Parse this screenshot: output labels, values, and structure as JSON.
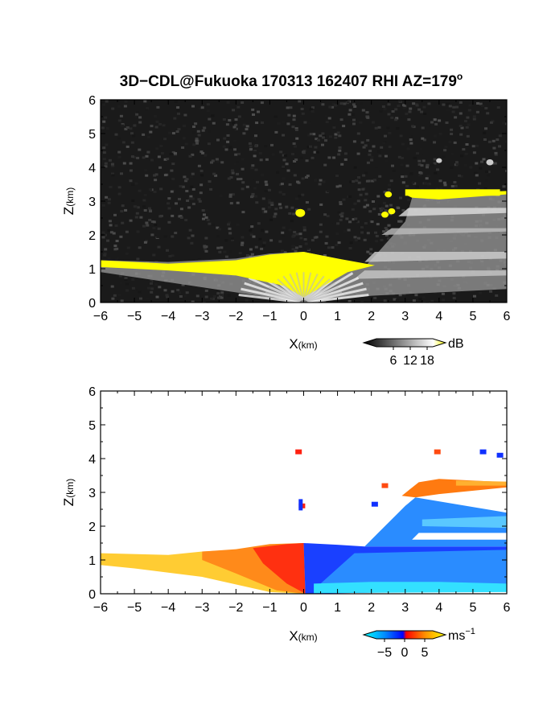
{
  "chart_data": [
    {
      "type": "heatmap",
      "title_main": "3D−CDL@Fukuoka 170313 162407 RHI AZ=179",
      "title_sup": "o",
      "xlabel_main": "X",
      "xlabel_unit": "(km)",
      "ylabel_main": "Z",
      "ylabel_unit": "(km)",
      "xlim": [
        -6,
        6
      ],
      "ylim": [
        0,
        6
      ],
      "xticks": [
        "−6",
        "−5",
        "−4",
        "−3",
        "−2",
        "−1",
        "0",
        "1",
        "2",
        "3",
        "4",
        "5",
        "6"
      ],
      "yticks": [
        "0",
        "1",
        "2",
        "3",
        "4",
        "5",
        "6"
      ],
      "colorbar": {
        "unit": "dB",
        "ticks": [
          "6",
          "12",
          "18"
        ],
        "values": [
          6,
          12,
          18
        ],
        "range": [
          0,
          20
        ]
      },
      "layers": [
        {
          "name": "aerosol layer",
          "x": [
            -6,
            6
          ],
          "top_km": [
            1.2,
            1.5,
            1.0
          ]
        },
        {
          "name": "elevated layer",
          "x": [
            2,
            6
          ],
          "z_km": [
            3.0,
            3.3
          ]
        },
        {
          "name": "cloud echoes",
          "z_km": [
            1.5,
            3.2
          ]
        }
      ]
    },
    {
      "type": "heatmap",
      "xlabel_main": "X",
      "xlabel_unit": "(km)",
      "ylabel_main": "Z",
      "ylabel_unit": "(km)",
      "xlim": [
        -6,
        6
      ],
      "ylim": [
        0,
        6
      ],
      "xticks": [
        "−6",
        "−5",
        "−4",
        "−3",
        "−2",
        "−1",
        "0",
        "1",
        "2",
        "3",
        "4",
        "5",
        "6"
      ],
      "yticks": [
        "0",
        "1",
        "2",
        "3",
        "4",
        "5",
        "6"
      ],
      "colorbar": {
        "unit": "ms",
        "unit_sup": "−1",
        "ticks": [
          "−5",
          "0",
          "5"
        ],
        "values": [
          -5,
          0,
          5
        ],
        "range": [
          -7,
          7
        ]
      }
    }
  ]
}
